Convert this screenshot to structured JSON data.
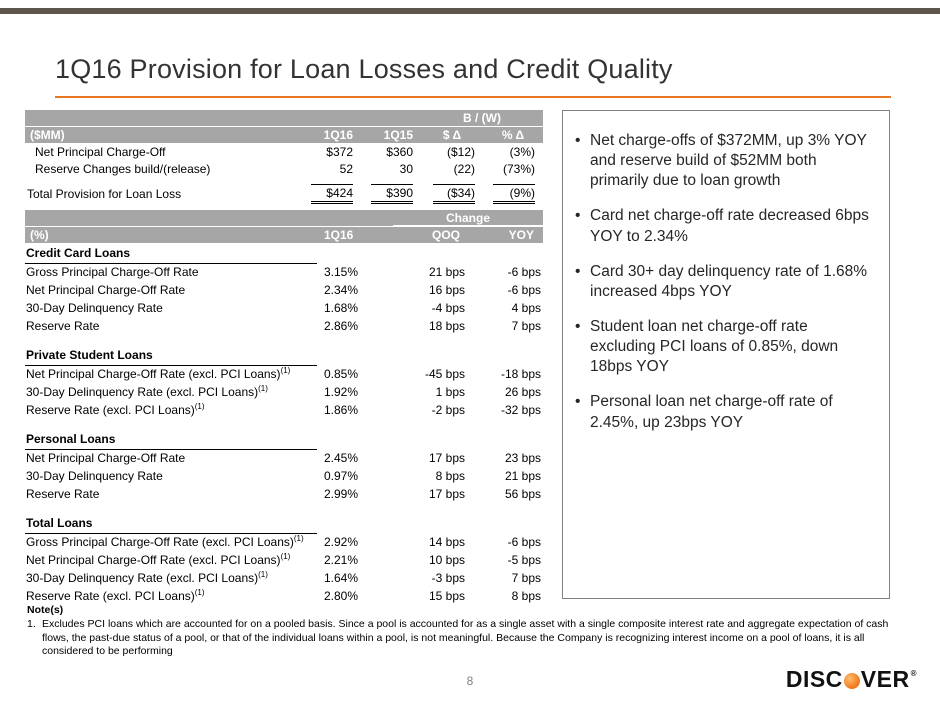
{
  "slide": {
    "title": "1Q16 Provision for Loan Losses and Credit Quality",
    "page_number": "8"
  },
  "colors": {
    "accent_orange": "#E87722",
    "table_header_gray": "#A6A6A6",
    "top_bar": "#5E564D",
    "logo_orange": "#F47B20"
  },
  "provision_table": {
    "group_header": "B / (W)",
    "columns": [
      "($MM)",
      "1Q16",
      "1Q15",
      "$ Δ",
      "% Δ"
    ],
    "rows": [
      {
        "label": "Net Principal Charge-Off",
        "values": [
          "$372",
          "$360",
          "($12)",
          "(3%)"
        ]
      },
      {
        "label": "Reserve Changes build/(release)",
        "values": [
          "52",
          "30",
          "(22)",
          "(73%)"
        ]
      }
    ],
    "total_row": {
      "label": "Total Provision for Loan Loss",
      "values": [
        "$424",
        "$390",
        "($34)",
        "(9%)"
      ]
    }
  },
  "rates_table": {
    "group_header": "Change",
    "columns": [
      "(%)",
      "1Q16",
      "QOQ",
      "YOY"
    ],
    "sections": [
      {
        "name": "Credit Card Loans",
        "rows": [
          {
            "label": "Gross Principal Charge-Off Rate",
            "sup": "",
            "q16": "3.15%",
            "qoq": "21 bps",
            "yoy": "-6 bps"
          },
          {
            "label": "Net Principal Charge-Off Rate",
            "sup": "",
            "q16": "2.34%",
            "qoq": "16 bps",
            "yoy": "-6 bps"
          },
          {
            "label": "30-Day Delinquency Rate",
            "sup": "",
            "q16": "1.68%",
            "qoq": "-4 bps",
            "yoy": "4 bps"
          },
          {
            "label": "Reserve Rate",
            "sup": "",
            "q16": "2.86%",
            "qoq": "18 bps",
            "yoy": "7 bps"
          }
        ]
      },
      {
        "name": "Private Student Loans",
        "rows": [
          {
            "label": "Net Principal Charge-Off Rate (excl. PCI Loans)",
            "sup": "(1)",
            "q16": "0.85%",
            "qoq": "-45 bps",
            "yoy": "-18 bps"
          },
          {
            "label": "30-Day Delinquency Rate (excl. PCI Loans)",
            "sup": "(1)",
            "q16": "1.92%",
            "qoq": "1 bps",
            "yoy": "26 bps"
          },
          {
            "label": "Reserve Rate (excl. PCI Loans)",
            "sup": "(1)",
            "q16": "1.86%",
            "qoq": "-2 bps",
            "yoy": "-32 bps"
          }
        ]
      },
      {
        "name": "Personal Loans",
        "rows": [
          {
            "label": "Net Principal Charge-Off Rate",
            "sup": "",
            "q16": "2.45%",
            "qoq": "17 bps",
            "yoy": "23 bps"
          },
          {
            "label": "30-Day Delinquency Rate",
            "sup": "",
            "q16": "0.97%",
            "qoq": "8 bps",
            "yoy": "21 bps"
          },
          {
            "label": "Reserve Rate",
            "sup": "",
            "q16": "2.99%",
            "qoq": "17 bps",
            "yoy": "56 bps"
          }
        ]
      },
      {
        "name": "Total Loans",
        "rows": [
          {
            "label": "Gross Principal Charge-Off Rate (excl. PCI Loans)",
            "sup": "(1)",
            "q16": "2.92%",
            "qoq": "14 bps",
            "yoy": "-6 bps"
          },
          {
            "label": "Net Principal Charge-Off Rate (excl. PCI Loans)",
            "sup": "(1)",
            "q16": "2.21%",
            "qoq": "10 bps",
            "yoy": "-5 bps"
          },
          {
            "label": "30-Day Delinquency Rate (excl. PCI Loans)",
            "sup": "(1)",
            "q16": "1.64%",
            "qoq": "-3 bps",
            "yoy": "7 bps"
          },
          {
            "label": "Reserve Rate (excl. PCI Loans)",
            "sup": "(1)",
            "q16": "2.80%",
            "qoq": "15 bps",
            "yoy": "8 bps"
          }
        ]
      }
    ]
  },
  "highlights": {
    "bullet_char": "•",
    "bullets": [
      "Net charge-offs of $372MM, up 3% YOY and reserve build of $52MM both primarily due to loan growth",
      "Card net charge-off rate decreased 6bps YOY to 2.34%",
      "Card 30+ day delinquency rate of 1.68% increased 4bps YOY",
      "Student loan net charge-off rate excluding PCI loans of 0.85%, down 18bps YOY",
      "Personal loan net charge-off rate of 2.45%, up 23bps YOY"
    ]
  },
  "notes": {
    "title": "Note(s)",
    "items": [
      {
        "number": "1.",
        "text": "Excludes PCI loans which are accounted for on a pooled basis. Since a pool is accounted for as a single asset with a single composite interest rate and aggregate expectation of cash flows, the past-due status of a pool, or that of the individual loans within a pool, is not meaningful. Because the Company is recognizing interest income on a pool of loans, it is all considered to be performing"
      }
    ]
  },
  "logo": {
    "prefix": "DISC",
    "suffix": "VER",
    "registered": "®"
  }
}
